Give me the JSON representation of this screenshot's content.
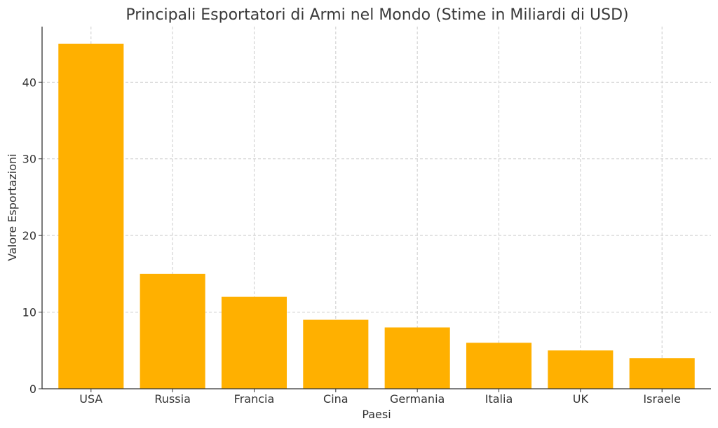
{
  "chart_data": {
    "type": "bar",
    "title": "Principali Esportatori di Armi nel Mondo (Stime in Miliardi di USD)",
    "xlabel": "Paesi",
    "ylabel": "Valore Esportazioni",
    "categories": [
      "USA",
      "Russia",
      "Francia",
      "Cina",
      "Germania",
      "Italia",
      "UK",
      "Israele"
    ],
    "values": [
      45,
      15,
      12,
      9,
      8,
      6,
      5,
      4
    ],
    "ylim": [
      0,
      47.25
    ],
    "yticks": [
      0,
      10,
      20,
      30,
      40
    ],
    "grid": true,
    "bar_color": "#FFB000"
  }
}
